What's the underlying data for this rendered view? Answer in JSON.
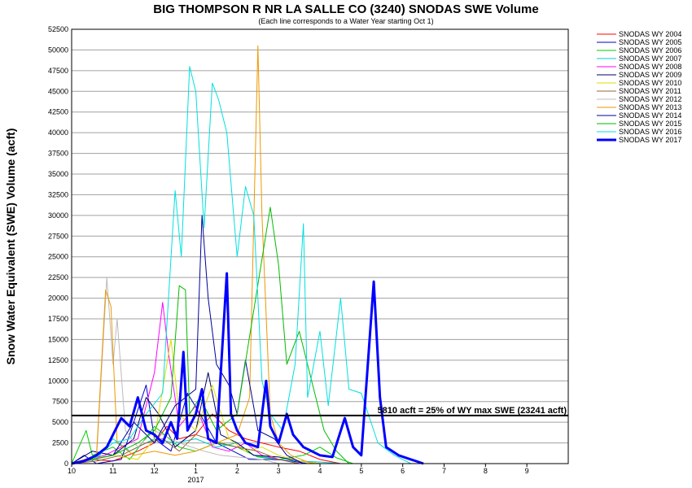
{
  "chart_data": {
    "type": "line",
    "title": "BIG THOMPSON R NR LA SALLE CO (3240) SNODAS SWE Volume",
    "subtitle": "(Each line corresponds to a Water Year starting Oct 1)",
    "ylabel": "Snow Water Equivalent (SWE) Volume (acft)",
    "xlabel": "",
    "x_ticks": [
      "10",
      "11",
      "12",
      "1",
      "2",
      "3",
      "4",
      "5",
      "6",
      "7",
      "8",
      "9"
    ],
    "x_tick_year_label": "2017",
    "ylim": [
      0,
      52500
    ],
    "y_ticks": [
      0,
      2500,
      5000,
      7500,
      10000,
      12500,
      15000,
      17500,
      20000,
      22500,
      25000,
      27500,
      30000,
      32500,
      35000,
      37500,
      40000,
      42500,
      45000,
      47500,
      50000,
      52500
    ],
    "grid": true,
    "legend_position": "right",
    "reference_line": {
      "value": 5810,
      "label": "5810 acft = 25% of WY max SWE (23241 acft)"
    },
    "series": [
      {
        "name": "SNODAS WY 2004",
        "color": "#ff0000",
        "width": 1,
        "points": [
          [
            0.0,
            0
          ],
          [
            0.5,
            500
          ],
          [
            1.0,
            300
          ],
          [
            1.6,
            1500
          ],
          [
            2.0,
            2500
          ],
          [
            2.3,
            4500
          ],
          [
            2.6,
            3000
          ],
          [
            3.0,
            3500
          ],
          [
            3.4,
            6000
          ],
          [
            3.8,
            4000
          ],
          [
            4.2,
            3000
          ],
          [
            4.6,
            2500
          ],
          [
            5.0,
            2000
          ],
          [
            5.5,
            1500
          ],
          [
            6.0,
            500
          ],
          [
            6.5,
            0
          ]
        ]
      },
      {
        "name": "SNODAS WY 2005",
        "color": "#0000cc",
        "width": 1,
        "points": [
          [
            0.0,
            0
          ],
          [
            0.3,
            1000
          ],
          [
            0.6,
            0
          ],
          [
            1.2,
            500
          ],
          [
            1.8,
            9500
          ],
          [
            2.0,
            3000
          ],
          [
            2.4,
            1500
          ],
          [
            2.8,
            8500
          ],
          [
            3.1,
            6000
          ],
          [
            3.5,
            2500
          ],
          [
            3.9,
            1500
          ],
          [
            4.3,
            500
          ],
          [
            4.8,
            500
          ],
          [
            5.2,
            400
          ],
          [
            5.7,
            0
          ]
        ]
      },
      {
        "name": "SNODAS WY 2006",
        "color": "#00cc00",
        "width": 1,
        "points": [
          [
            0.0,
            0
          ],
          [
            0.35,
            4000
          ],
          [
            0.5,
            1000
          ],
          [
            1.0,
            2000
          ],
          [
            1.4,
            500
          ],
          [
            2.0,
            4500
          ],
          [
            2.6,
            2000
          ],
          [
            3.0,
            1500
          ],
          [
            3.5,
            2500
          ],
          [
            4.0,
            2000
          ],
          [
            4.5,
            800
          ],
          [
            5.0,
            500
          ],
          [
            5.6,
            1000
          ],
          [
            6.0,
            2000
          ],
          [
            6.4,
            700
          ],
          [
            6.8,
            0
          ]
        ]
      },
      {
        "name": "SNODAS WY 2007",
        "color": "#00cccc",
        "width": 1,
        "points": [
          [
            0.0,
            0
          ],
          [
            0.6,
            500
          ],
          [
            1.0,
            3000
          ],
          [
            1.4,
            1500
          ],
          [
            2.0,
            3000
          ],
          [
            2.5,
            2500
          ],
          [
            3.0,
            3000
          ],
          [
            3.5,
            2000
          ],
          [
            4.0,
            2500
          ],
          [
            4.4,
            1000
          ],
          [
            5.0,
            500
          ],
          [
            5.5,
            300
          ],
          [
            6.0,
            200
          ],
          [
            6.5,
            0
          ]
        ]
      },
      {
        "name": "SNODAS WY 2008",
        "color": "#ff00ff",
        "width": 1,
        "points": [
          [
            0.0,
            0
          ],
          [
            0.8,
            1000
          ],
          [
            1.6,
            3000
          ],
          [
            2.0,
            11000
          ],
          [
            2.2,
            19500
          ],
          [
            2.35,
            13000
          ],
          [
            2.6,
            4500
          ],
          [
            3.0,
            7000
          ],
          [
            3.4,
            2000
          ],
          [
            3.8,
            1500
          ],
          [
            4.2,
            2500
          ],
          [
            4.6,
            1000
          ],
          [
            5.0,
            500
          ],
          [
            5.5,
            0
          ]
        ]
      },
      {
        "name": "SNODAS WY 2009",
        "color": "#000066",
        "width": 1,
        "points": [
          [
            0.0,
            0
          ],
          [
            0.5,
            1500
          ],
          [
            1.0,
            1000
          ],
          [
            1.5,
            3000
          ],
          [
            1.8,
            8000
          ],
          [
            2.1,
            6000
          ],
          [
            2.5,
            2000
          ],
          [
            3.0,
            4000
          ],
          [
            3.3,
            11000
          ],
          [
            3.6,
            3500
          ],
          [
            4.0,
            2500
          ],
          [
            4.4,
            1000
          ],
          [
            5.0,
            800
          ],
          [
            5.5,
            300
          ],
          [
            6.0,
            0
          ]
        ]
      },
      {
        "name": "SNODAS WY 2010",
        "color": "#dddd00",
        "width": 1,
        "points": [
          [
            0.0,
            0
          ],
          [
            0.4,
            500
          ],
          [
            1.0,
            1000
          ],
          [
            1.6,
            500
          ],
          [
            2.0,
            3000
          ],
          [
            2.4,
            15000
          ],
          [
            2.6,
            6000
          ],
          [
            3.0,
            4000
          ],
          [
            3.4,
            9500
          ],
          [
            3.8,
            3000
          ],
          [
            4.2,
            1500
          ],
          [
            4.6,
            2000
          ],
          [
            5.0,
            1000
          ],
          [
            5.5,
            300
          ],
          [
            6.0,
            0
          ]
        ]
      },
      {
        "name": "SNODAS WY 2011",
        "color": "#996633",
        "width": 1,
        "points": [
          [
            0.0,
            0
          ],
          [
            0.6,
            300
          ],
          [
            1.2,
            1000
          ],
          [
            1.8,
            2500
          ],
          [
            2.2,
            3000
          ],
          [
            2.6,
            1500
          ],
          [
            3.0,
            3500
          ],
          [
            3.6,
            2500
          ],
          [
            4.0,
            2000
          ],
          [
            4.5,
            1500
          ],
          [
            5.0,
            500
          ],
          [
            5.5,
            0
          ]
        ]
      },
      {
        "name": "SNODAS WY 2012",
        "color": "#bbbbbb",
        "width": 1,
        "points": [
          [
            0.0,
            0
          ],
          [
            0.6,
            500
          ],
          [
            0.85,
            22500
          ],
          [
            1.0,
            12000
          ],
          [
            1.1,
            17500
          ],
          [
            1.3,
            4000
          ],
          [
            1.6,
            2000
          ],
          [
            2.0,
            4000
          ],
          [
            2.6,
            2500
          ],
          [
            3.2,
            1500
          ],
          [
            3.6,
            1000
          ],
          [
            4.0,
            800
          ],
          [
            4.6,
            500
          ],
          [
            5.0,
            0
          ]
        ]
      },
      {
        "name": "SNODAS WY 2013",
        "color": "#ee9900",
        "width": 1,
        "points": [
          [
            0.0,
            0
          ],
          [
            0.6,
            1000
          ],
          [
            0.82,
            21000
          ],
          [
            0.95,
            19000
          ],
          [
            1.1,
            2500
          ],
          [
            1.5,
            1000
          ],
          [
            2.0,
            1500
          ],
          [
            2.5,
            1000
          ],
          [
            3.0,
            1500
          ],
          [
            3.5,
            2500
          ],
          [
            4.0,
            3500
          ],
          [
            4.3,
            8000
          ],
          [
            4.5,
            50500
          ],
          [
            4.6,
            30000
          ],
          [
            4.8,
            6000
          ],
          [
            5.0,
            2500
          ],
          [
            5.3,
            1000
          ],
          [
            5.8,
            0
          ]
        ]
      },
      {
        "name": "SNODAS WY 2014",
        "color": "#000099",
        "width": 1,
        "points": [
          [
            0.0,
            0
          ],
          [
            0.5,
            500
          ],
          [
            1.0,
            1000
          ],
          [
            1.5,
            5000
          ],
          [
            2.0,
            2500
          ],
          [
            2.5,
            7000
          ],
          [
            3.0,
            9000
          ],
          [
            3.15,
            30000
          ],
          [
            3.3,
            20000
          ],
          [
            3.5,
            12000
          ],
          [
            3.8,
            9500
          ],
          [
            4.0,
            6000
          ],
          [
            4.2,
            12500
          ],
          [
            4.5,
            4000
          ],
          [
            4.9,
            3000
          ],
          [
            5.2,
            1000
          ],
          [
            5.6,
            0
          ]
        ]
      },
      {
        "name": "SNODAS WY 2015",
        "color": "#00bb00",
        "width": 1,
        "points": [
          [
            0.0,
            0
          ],
          [
            0.5,
            500
          ],
          [
            1.0,
            1000
          ],
          [
            1.6,
            2500
          ],
          [
            2.0,
            4000
          ],
          [
            2.4,
            8000
          ],
          [
            2.6,
            21500
          ],
          [
            2.75,
            21000
          ],
          [
            2.85,
            6000
          ],
          [
            3.1,
            8000
          ],
          [
            3.5,
            4000
          ],
          [
            4.0,
            6000
          ],
          [
            4.8,
            31000
          ],
          [
            5.0,
            24000
          ],
          [
            5.2,
            12000
          ],
          [
            5.5,
            16000
          ],
          [
            5.8,
            10000
          ],
          [
            6.1,
            4000
          ],
          [
            6.4,
            1500
          ],
          [
            6.7,
            0
          ]
        ]
      },
      {
        "name": "SNODAS WY 2016",
        "color": "#00e0e0",
        "width": 1,
        "points": [
          [
            0.0,
            0
          ],
          [
            0.6,
            800
          ],
          [
            1.0,
            2500
          ],
          [
            1.4,
            3000
          ],
          [
            1.8,
            6000
          ],
          [
            2.2,
            8500
          ],
          [
            2.5,
            33000
          ],
          [
            2.65,
            25000
          ],
          [
            2.85,
            48000
          ],
          [
            3.0,
            45000
          ],
          [
            3.2,
            28500
          ],
          [
            3.4,
            46000
          ],
          [
            3.55,
            44000
          ],
          [
            3.75,
            40000
          ],
          [
            4.0,
            25000
          ],
          [
            4.2,
            33500
          ],
          [
            4.4,
            30000
          ],
          [
            4.6,
            10000
          ],
          [
            4.8,
            6000
          ],
          [
            5.1,
            4000
          ],
          [
            5.4,
            12000
          ],
          [
            5.6,
            29000
          ],
          [
            5.7,
            8000
          ],
          [
            6.0,
            16000
          ],
          [
            6.2,
            7000
          ],
          [
            6.5,
            20000
          ],
          [
            6.7,
            9000
          ],
          [
            7.0,
            8500
          ],
          [
            7.4,
            2500
          ],
          [
            7.8,
            1000
          ],
          [
            8.2,
            0
          ]
        ]
      },
      {
        "name": "SNODAS WY 2017",
        "color": "#0000ff",
        "width": 3,
        "points": [
          [
            0.0,
            0
          ],
          [
            0.3,
            300
          ],
          [
            0.6,
            1000
          ],
          [
            0.85,
            2000
          ],
          [
            1.0,
            3500
          ],
          [
            1.2,
            5500
          ],
          [
            1.4,
            4500
          ],
          [
            1.6,
            8000
          ],
          [
            1.8,
            4000
          ],
          [
            2.0,
            3500
          ],
          [
            2.2,
            2500
          ],
          [
            2.4,
            5000
          ],
          [
            2.55,
            3000
          ],
          [
            2.7,
            13500
          ],
          [
            2.8,
            4000
          ],
          [
            3.0,
            6000
          ],
          [
            3.15,
            9000
          ],
          [
            3.3,
            3000
          ],
          [
            3.5,
            2500
          ],
          [
            3.75,
            23000
          ],
          [
            3.85,
            6000
          ],
          [
            4.0,
            4000
          ],
          [
            4.2,
            2500
          ],
          [
            4.5,
            2000
          ],
          [
            4.7,
            10000
          ],
          [
            4.8,
            4500
          ],
          [
            5.0,
            2500
          ],
          [
            5.2,
            6000
          ],
          [
            5.35,
            3500
          ],
          [
            5.6,
            2000
          ],
          [
            5.8,
            1500
          ],
          [
            6.0,
            1000
          ],
          [
            6.3,
            800
          ],
          [
            6.6,
            5500
          ],
          [
            6.8,
            2000
          ],
          [
            7.0,
            1000
          ],
          [
            7.3,
            22000
          ],
          [
            7.45,
            8000
          ],
          [
            7.6,
            2000
          ],
          [
            7.9,
            1000
          ],
          [
            8.2,
            500
          ],
          [
            8.5,
            0
          ]
        ]
      }
    ]
  }
}
